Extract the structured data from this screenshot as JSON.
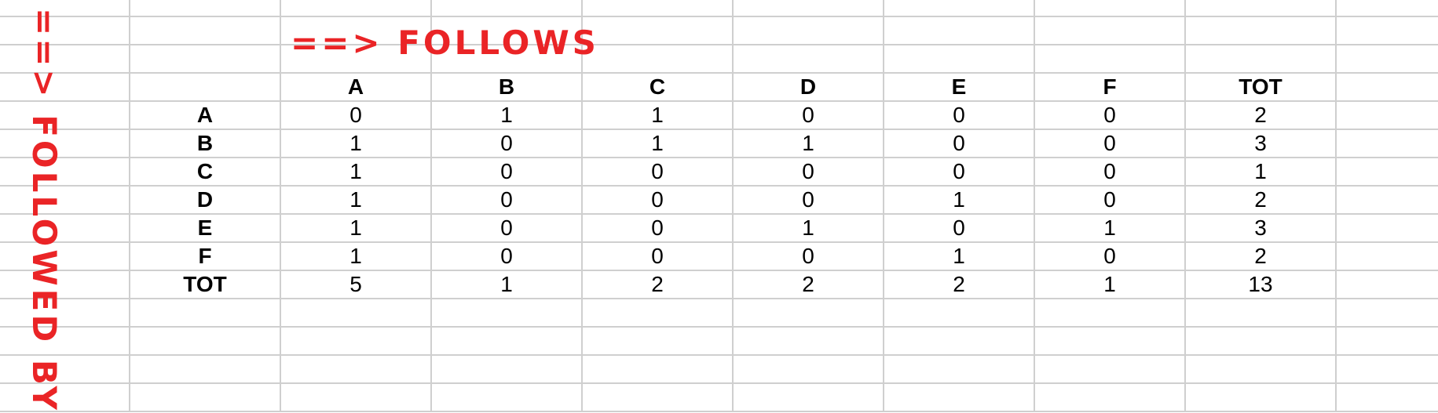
{
  "labels": {
    "follows": "==> FOLLOWS",
    "followed_by": "==> FOLLOWED BY"
  },
  "colors": {
    "accent_red": "#ea2426",
    "grid_line": "#cfcfcf"
  },
  "table": {
    "column_headers": [
      "A",
      "B",
      "C",
      "D",
      "E",
      "F",
      "TOT"
    ],
    "rows": [
      {
        "label": "A",
        "values": [
          "0",
          "1",
          "1",
          "0",
          "0",
          "0",
          "2"
        ]
      },
      {
        "label": "B",
        "values": [
          "1",
          "0",
          "1",
          "1",
          "0",
          "0",
          "3"
        ]
      },
      {
        "label": "C",
        "values": [
          "1",
          "0",
          "0",
          "0",
          "0",
          "0",
          "1"
        ]
      },
      {
        "label": "D",
        "values": [
          "1",
          "0",
          "0",
          "0",
          "1",
          "0",
          "2"
        ]
      },
      {
        "label": "E",
        "values": [
          "1",
          "0",
          "0",
          "1",
          "0",
          "1",
          "3"
        ]
      },
      {
        "label": "F",
        "values": [
          "1",
          "0",
          "0",
          "0",
          "1",
          "0",
          "2"
        ]
      },
      {
        "label": "TOT",
        "values": [
          "5",
          "1",
          "2",
          "2",
          "2",
          "1",
          "13"
        ]
      }
    ]
  }
}
